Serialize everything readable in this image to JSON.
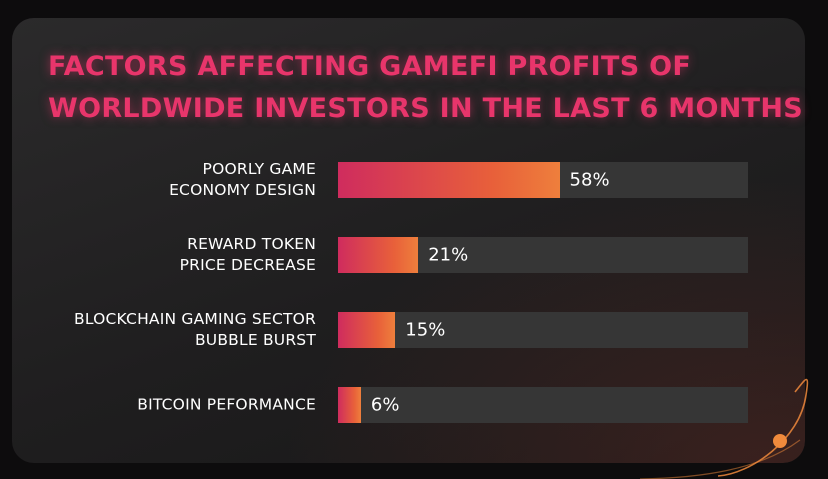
{
  "colors": {
    "title": "#e8356b",
    "bar_start": "#cf2c5e",
    "bar_end": "#ee7f3c",
    "track": "#363636",
    "accent_orbit": "#f08a3c"
  },
  "chart_data": {
    "type": "bar",
    "orientation": "horizontal",
    "title_lines": [
      "FACTORS AFFECTING GAMEFI PROFITS OF",
      "WORLDWIDE INVESTORS IN THE LAST 6 MONTHS"
    ],
    "categories": [
      [
        "POORLY GAME",
        "ECONOMY DESIGN"
      ],
      [
        "REWARD TOKEN",
        "PRICE DECREASE"
      ],
      [
        "BLOCKCHAIN GAMING SECTOR",
        "BUBBLE BURST"
      ],
      [
        "BITCOIN PEFORMANCE"
      ]
    ],
    "values": [
      58,
      21,
      15,
      6
    ],
    "value_labels": [
      "58%",
      "21%",
      "15%",
      "6%"
    ],
    "unit": "%",
    "xlim": [
      0,
      100
    ],
    "grid": false,
    "legend": "none"
  },
  "decor": {
    "orbit_icon": "orbit-ring-icon"
  }
}
